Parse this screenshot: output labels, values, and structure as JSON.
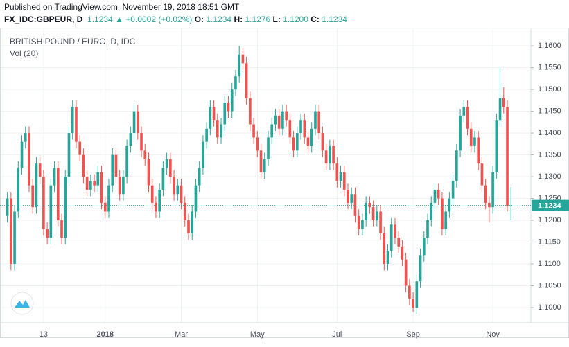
{
  "header": {
    "published": "Published on TradingView.com, November 19, 2018 18:51 GMT",
    "symbol": "FX_IDC:GBPEUR, D",
    "last": "1.1234",
    "change": "+0.0002 (+0.02%)",
    "items": [
      {
        "label": "O:",
        "value": "1.1234"
      },
      {
        "label": "H:",
        "value": "1.1276"
      },
      {
        "label": "L:",
        "value": "1.1200"
      },
      {
        "label": "C:",
        "value": "1.1234"
      }
    ]
  },
  "chart_data": {
    "type": "candlestick",
    "title": "BRITISH POUND / EURO, D, IDC",
    "subtitle": "Vol (20)",
    "up_color": "#26a69a",
    "down_color": "#ef5350",
    "grid": true,
    "categories": [
      null,
      null,
      null,
      null,
      null,
      null,
      null,
      null,
      null,
      null,
      "13",
      null,
      null,
      null,
      null,
      null,
      null,
      null,
      null,
      null,
      null,
      null,
      null,
      null,
      null,
      null,
      null,
      "2018",
      null,
      null,
      null,
      null,
      null,
      null,
      null,
      null,
      null,
      null,
      null,
      null,
      null,
      null,
      null,
      null,
      null,
      null,
      null,
      null,
      "Mar",
      null,
      null,
      null,
      null,
      null,
      null,
      null,
      null,
      null,
      null,
      null,
      null,
      null,
      null,
      null,
      null,
      null,
      null,
      null,
      null,
      "May",
      null,
      null,
      null,
      null,
      null,
      null,
      null,
      null,
      null,
      null,
      null,
      null,
      null,
      null,
      null,
      null,
      null,
      null,
      null,
      null,
      null,
      "Jul",
      null,
      null,
      null,
      null,
      null,
      null,
      null,
      null,
      null,
      null,
      null,
      null,
      null,
      null,
      null,
      null,
      null,
      null,
      null,
      null,
      "Sep",
      null,
      null,
      null,
      null,
      null,
      null,
      null,
      null,
      null,
      null,
      null,
      null,
      null,
      null,
      null,
      null,
      null,
      null,
      null,
      null,
      null,
      "Nov",
      null,
      null,
      null,
      null,
      null
    ],
    "open": [
      1.121,
      1.125,
      1.11,
      1.122,
      1.132,
      1.138,
      1.14,
      1.128,
      1.123,
      1.133,
      1.13,
      1.118,
      1.116,
      1.128,
      1.132,
      1.12,
      1.116,
      1.13,
      1.14,
      1.146,
      1.138,
      1.135,
      1.13,
      1.127,
      1.129,
      1.128,
      1.131,
      1.124,
      1.122,
      1.128,
      1.135,
      1.13,
      1.126,
      1.13,
      1.137,
      1.14,
      1.145,
      1.14,
      1.136,
      1.134,
      1.128,
      1.124,
      1.122,
      1.127,
      1.132,
      1.134,
      1.13,
      1.126,
      1.128,
      1.124,
      1.12,
      1.117,
      1.122,
      1.128,
      1.132,
      1.138,
      1.141,
      1.146,
      1.143,
      1.139,
      1.142,
      1.147,
      1.145,
      1.15,
      1.153,
      1.158,
      1.156,
      1.148,
      1.142,
      1.139,
      1.136,
      1.131,
      1.134,
      1.139,
      1.142,
      1.144,
      1.141,
      1.145,
      1.143,
      1.139,
      1.136,
      1.14,
      1.143,
      1.139,
      1.137,
      1.141,
      1.145,
      1.14,
      1.136,
      1.133,
      1.137,
      1.133,
      1.129,
      1.131,
      1.127,
      1.124,
      1.126,
      1.121,
      1.118,
      1.12,
      1.124,
      1.123,
      1.12,
      1.122,
      1.117,
      1.11,
      1.113,
      1.119,
      1.116,
      1.114,
      1.111,
      1.105,
      1.102,
      1.1,
      1.106,
      1.112,
      1.116,
      1.12,
      1.124,
      1.127,
      1.125,
      1.118,
      1.122,
      1.125,
      1.129,
      1.136,
      1.144,
      1.146,
      1.141,
      1.137,
      1.139,
      1.133,
      1.128,
      1.124,
      1.123,
      1.131,
      1.143,
      1.148,
      1.146,
      1.1234
    ],
    "high": [
      1.1265,
      1.1265,
      1.1235,
      1.1335,
      1.1395,
      1.1415,
      1.1415,
      1.1295,
      1.1345,
      1.1345,
      1.1315,
      1.1195,
      1.1295,
      1.1335,
      1.1335,
      1.1215,
      1.1315,
      1.1415,
      1.1475,
      1.1475,
      1.1395,
      1.1365,
      1.1315,
      1.1305,
      1.1305,
      1.1325,
      1.1325,
      1.1255,
      1.1295,
      1.1365,
      1.1365,
      1.1315,
      1.1315,
      1.1385,
      1.1415,
      1.1465,
      1.1465,
      1.1415,
      1.1375,
      1.1355,
      1.1295,
      1.1255,
      1.1285,
      1.1335,
      1.1355,
      1.1355,
      1.1315,
      1.1295,
      1.1295,
      1.1255,
      1.1215,
      1.1235,
      1.1295,
      1.1335,
      1.1395,
      1.1425,
      1.1475,
      1.1475,
      1.1445,
      1.1435,
      1.1485,
      1.1485,
      1.1515,
      1.1545,
      1.16,
      1.1595,
      1.1575,
      1.1495,
      1.1435,
      1.1405,
      1.1375,
      1.1355,
      1.1405,
      1.1435,
      1.1455,
      1.1455,
      1.1465,
      1.1465,
      1.1445,
      1.1405,
      1.1415,
      1.1445,
      1.1445,
      1.1405,
      1.1425,
      1.1465,
      1.1465,
      1.1415,
      1.1375,
      1.1385,
      1.1385,
      1.1345,
      1.1325,
      1.1325,
      1.1285,
      1.1275,
      1.1275,
      1.1225,
      1.1215,
      1.1255,
      1.1255,
      1.1245,
      1.1235,
      1.1235,
      1.1185,
      1.1145,
      1.1205,
      1.1205,
      1.1175,
      1.1155,
      1.1125,
      1.1065,
      1.1035,
      1.1075,
      1.1135,
      1.1175,
      1.1215,
      1.1255,
      1.1285,
      1.1285,
      1.1265,
      1.1235,
      1.1265,
      1.1305,
      1.1375,
      1.1455,
      1.1475,
      1.1475,
      1.1425,
      1.1405,
      1.1405,
      1.1345,
      1.1295,
      1.1255,
      1.1325,
      1.1445,
      1.155,
      1.1505,
      1.1475,
      1.1276
    ],
    "low": [
      1.1195,
      1.1085,
      1.1085,
      1.1205,
      1.1305,
      1.1365,
      1.1265,
      1.1215,
      1.1215,
      1.1285,
      1.1165,
      1.1145,
      1.1145,
      1.1265,
      1.1185,
      1.1145,
      1.1145,
      1.1285,
      1.1385,
      1.1365,
      1.1335,
      1.1285,
      1.1255,
      1.1255,
      1.1265,
      1.1265,
      1.1225,
      1.1205,
      1.1205,
      1.1265,
      1.1285,
      1.1245,
      1.1245,
      1.1285,
      1.1355,
      1.1385,
      1.1385,
      1.1345,
      1.1325,
      1.1265,
      1.1225,
      1.1205,
      1.1205,
      1.1255,
      1.1305,
      1.1285,
      1.1245,
      1.1245,
      1.1225,
      1.1185,
      1.1155,
      1.1155,
      1.1205,
      1.1265,
      1.1305,
      1.1365,
      1.1395,
      1.1415,
      1.1375,
      1.1375,
      1.1405,
      1.1435,
      1.1435,
      1.1485,
      1.1515,
      1.1545,
      1.1465,
      1.1405,
      1.1375,
      1.1345,
      1.1295,
      1.1295,
      1.1325,
      1.1375,
      1.1405,
      1.1395,
      1.1395,
      1.1415,
      1.1375,
      1.1345,
      1.1345,
      1.1385,
      1.1375,
      1.1355,
      1.1355,
      1.1395,
      1.1385,
      1.1345,
      1.1315,
      1.1315,
      1.1315,
      1.1275,
      1.1275,
      1.1255,
      1.1225,
      1.1225,
      1.1195,
      1.1165,
      1.1165,
      1.1185,
      1.1215,
      1.1185,
      1.1185,
      1.1155,
      1.1085,
      1.1085,
      1.1115,
      1.1145,
      1.1125,
      1.1095,
      1.1035,
      1.1005,
      1.099,
      1.0985,
      1.1045,
      1.1105,
      1.1145,
      1.1185,
      1.1225,
      1.1235,
      1.1165,
      1.1165,
      1.1205,
      1.1235,
      1.1275,
      1.1345,
      1.1425,
      1.1395,
      1.1355,
      1.1355,
      1.1315,
      1.1265,
      1.1225,
      1.1195,
      1.1215,
      1.1295,
      1.1415,
      1.1445,
      1.122,
      1.12
    ],
    "close": [
      1.125,
      1.11,
      1.122,
      1.132,
      1.138,
      1.14,
      1.128,
      1.123,
      1.133,
      1.13,
      1.118,
      1.116,
      1.128,
      1.132,
      1.12,
      1.116,
      1.13,
      1.14,
      1.146,
      1.138,
      1.135,
      1.13,
      1.127,
      1.129,
      1.128,
      1.131,
      1.124,
      1.122,
      1.128,
      1.135,
      1.13,
      1.126,
      1.13,
      1.137,
      1.14,
      1.145,
      1.14,
      1.136,
      1.134,
      1.128,
      1.124,
      1.122,
      1.127,
      1.132,
      1.134,
      1.13,
      1.126,
      1.128,
      1.124,
      1.12,
      1.117,
      1.122,
      1.128,
      1.132,
      1.138,
      1.141,
      1.146,
      1.143,
      1.139,
      1.142,
      1.147,
      1.145,
      1.15,
      1.153,
      1.158,
      1.156,
      1.148,
      1.142,
      1.139,
      1.136,
      1.131,
      1.134,
      1.139,
      1.142,
      1.144,
      1.141,
      1.145,
      1.143,
      1.139,
      1.136,
      1.14,
      1.143,
      1.139,
      1.137,
      1.141,
      1.145,
      1.14,
      1.136,
      1.133,
      1.137,
      1.133,
      1.129,
      1.131,
      1.127,
      1.124,
      1.126,
      1.121,
      1.118,
      1.12,
      1.124,
      1.123,
      1.12,
      1.122,
      1.117,
      1.11,
      1.113,
      1.119,
      1.116,
      1.114,
      1.111,
      1.105,
      1.102,
      1.1,
      1.106,
      1.112,
      1.116,
      1.12,
      1.124,
      1.127,
      1.125,
      1.118,
      1.122,
      1.125,
      1.129,
      1.136,
      1.144,
      1.146,
      1.141,
      1.137,
      1.139,
      1.133,
      1.128,
      1.124,
      1.123,
      1.131,
      1.143,
      1.148,
      1.146,
      1.1232,
      1.1234
    ],
    "last_price": {
      "value": 1.1234,
      "label": "1.1234"
    },
    "ylim": [
      1.0965,
      1.1632
    ],
    "yticks": [
      {
        "value": 1.1,
        "label": "1.1000"
      },
      {
        "value": 1.105,
        "label": "1.1050"
      },
      {
        "value": 1.11,
        "label": "1.1100"
      },
      {
        "value": 1.115,
        "label": "1.1150"
      },
      {
        "value": 1.12,
        "label": "1.1200"
      },
      {
        "value": 1.125,
        "label": "1.1250"
      },
      {
        "value": 1.13,
        "label": "1.1300"
      },
      {
        "value": 1.135,
        "label": "1.1350"
      },
      {
        "value": 1.14,
        "label": "1.1400"
      },
      {
        "value": 1.145,
        "label": "1.1450"
      },
      {
        "value": 1.15,
        "label": "1.1500"
      },
      {
        "value": 1.155,
        "label": "1.1550"
      },
      {
        "value": 1.16,
        "label": "1.1600"
      }
    ]
  }
}
